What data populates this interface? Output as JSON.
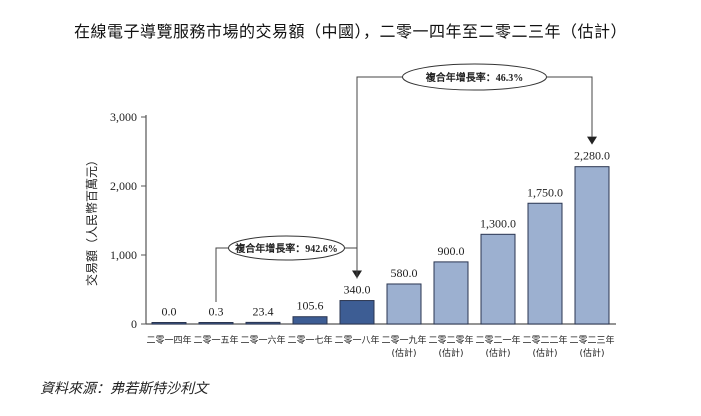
{
  "chart_data": {
    "type": "bar",
    "title": "在線電子導覽服務市場的交易額（中國），二零一四年至二零二三年（估計）",
    "ylabel": "交易額（人民幣百萬元）",
    "xlabel": "",
    "ylim": [
      0,
      3000
    ],
    "yticks": [
      0,
      1000,
      2000,
      3000
    ],
    "ytick_labels": [
      "0",
      "1,000",
      "2,000",
      "3,000"
    ],
    "grid": false,
    "categories": [
      [
        "二零一四年"
      ],
      [
        "二零一五年"
      ],
      [
        "二零一六年"
      ],
      [
        "二零一七年"
      ],
      [
        "二零一八年"
      ],
      [
        "二零一九年",
        "(估計)"
      ],
      [
        "二零二零年",
        "(估計)"
      ],
      [
        "二零二一年",
        "(估計)"
      ],
      [
        "二零二二年",
        "(估計)"
      ],
      [
        "二零二三年",
        "(估計)"
      ]
    ],
    "values": [
      0.0,
      0.3,
      23.4,
      105.6,
      340.0,
      580.0,
      900.0,
      1300.0,
      1750.0,
      2280.0
    ],
    "data_labels": [
      "0.0",
      "0.3",
      "23.4",
      "105.6",
      "340.0",
      "580.0",
      "900.0",
      "1,300.0",
      "1,750.0",
      "2,280.0"
    ],
    "colors": {
      "historical": "#3d5d94",
      "forecast": "#9cb0d0",
      "outline": "#2a3550"
    },
    "annotations": [
      {
        "text": "複合年增長率：942.6%",
        "from": "二零一五年",
        "to": "二零一八年"
      },
      {
        "text": "複合年增長率：46.3%",
        "from": "二零一八年",
        "to": "二零二三年"
      }
    ]
  },
  "source": "資料來源：弗若斯特沙利文"
}
